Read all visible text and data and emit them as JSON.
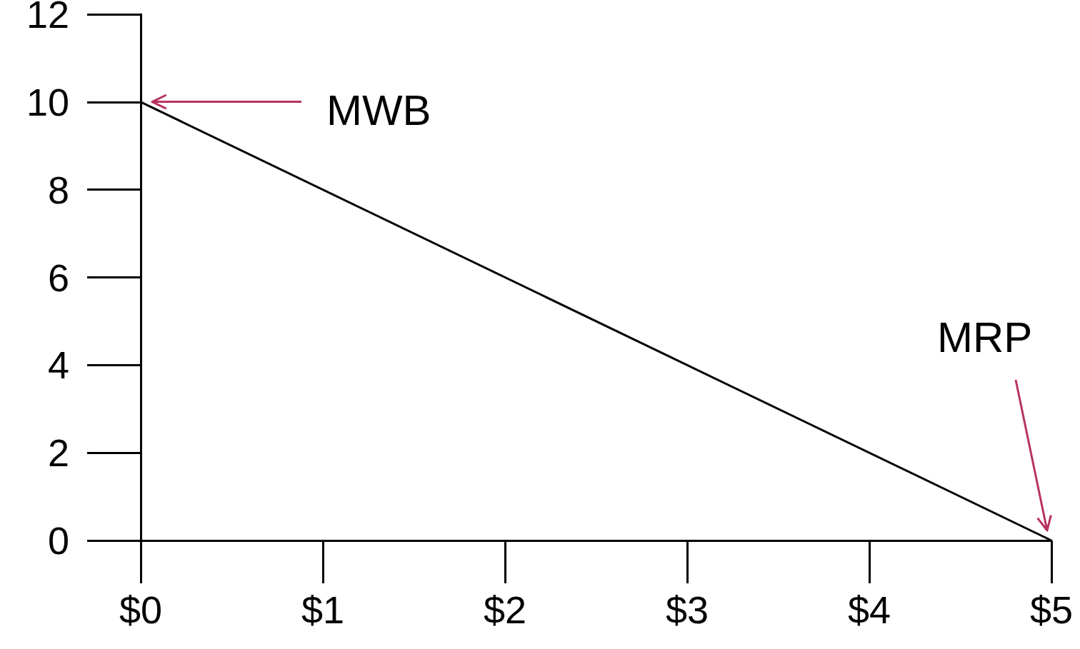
{
  "chart_data": {
    "type": "line",
    "x": [
      0,
      5
    ],
    "series": [
      {
        "color": "#000000",
        "values": [
          10,
          0
        ]
      }
    ],
    "xlim": [
      0,
      5
    ],
    "xticks": [
      {
        "value": 0,
        "label": "$0"
      },
      {
        "value": 1,
        "label": "$1"
      },
      {
        "value": 2,
        "label": "$2"
      },
      {
        "value": 3,
        "label": "$3"
      },
      {
        "value": 4,
        "label": "$4"
      },
      {
        "value": 5,
        "label": "$5"
      }
    ],
    "ylim": [
      0,
      12
    ],
    "yticks": [
      0,
      2,
      4,
      6,
      8,
      10,
      12
    ],
    "annotations": [
      "MWB",
      "MRP"
    ],
    "grid": false,
    "marker": "none",
    "line_style": "solid"
  }
}
